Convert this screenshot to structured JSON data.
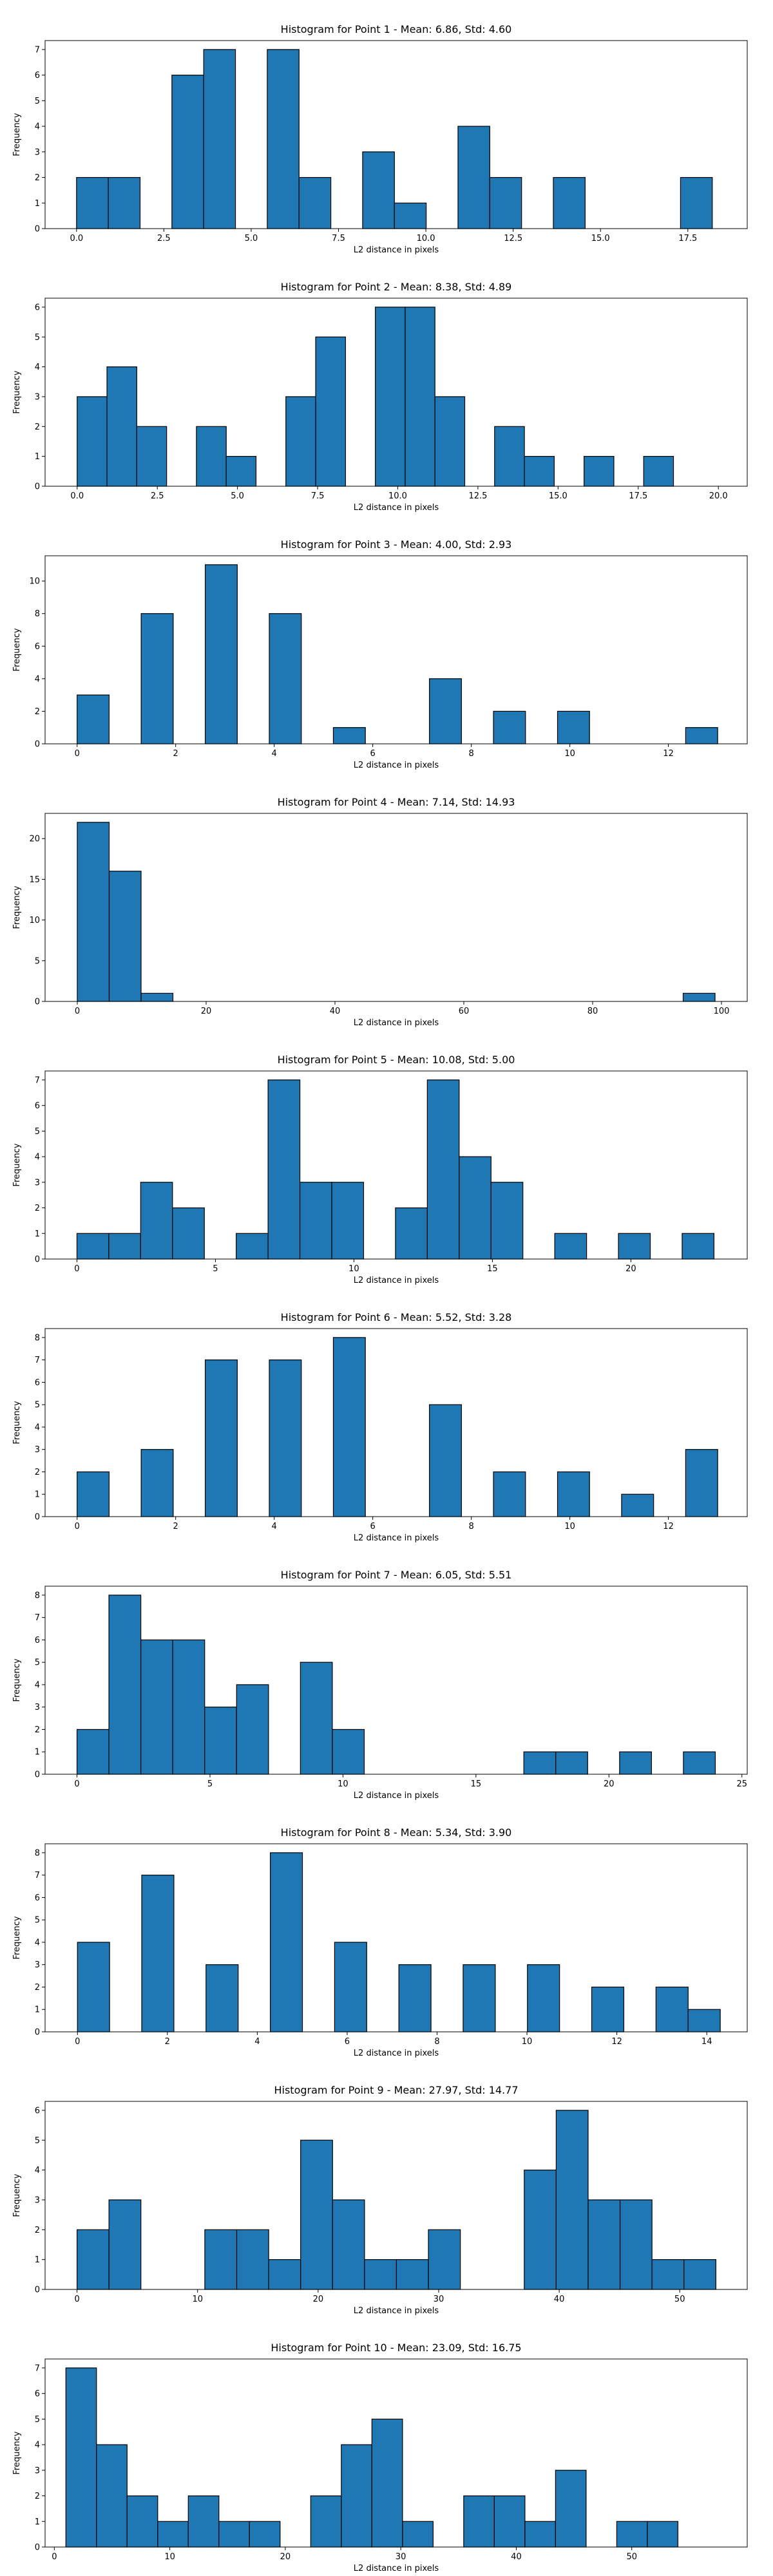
{
  "chart_data": [
    {
      "type": "bar",
      "title": "Histogram for Point 1 - Mean: 6.86, Std: 4.60",
      "xlabel": "L2 distance in pixels",
      "ylabel": "Frequency",
      "xlim": [
        -0.9,
        19.2
      ],
      "ylim": [
        0,
        7.35
      ],
      "xticks": [
        0.0,
        2.5,
        5.0,
        7.5,
        10.0,
        12.5,
        15.0,
        17.5
      ],
      "xtick_labels": [
        "0.0",
        "2.5",
        "5.0",
        "7.5",
        "10.0",
        "12.5",
        "15.0",
        "17.5"
      ],
      "yticks": [
        0,
        1,
        2,
        3,
        4,
        5,
        6,
        7
      ],
      "bins": [
        {
          "x0": 0.0,
          "x1": 0.91,
          "count": 2
        },
        {
          "x0": 0.91,
          "x1": 1.82,
          "count": 2
        },
        {
          "x0": 2.73,
          "x1": 3.64,
          "count": 6
        },
        {
          "x0": 3.64,
          "x1": 4.55,
          "count": 7
        },
        {
          "x0": 5.46,
          "x1": 6.37,
          "count": 7
        },
        {
          "x0": 6.37,
          "x1": 7.28,
          "count": 2
        },
        {
          "x0": 8.19,
          "x1": 9.1,
          "count": 3
        },
        {
          "x0": 9.1,
          "x1": 10.01,
          "count": 1
        },
        {
          "x0": 10.92,
          "x1": 11.83,
          "count": 4
        },
        {
          "x0": 11.83,
          "x1": 12.74,
          "count": 2
        },
        {
          "x0": 13.65,
          "x1": 14.56,
          "count": 2
        },
        {
          "x0": 17.29,
          "x1": 18.2,
          "count": 2
        }
      ]
    },
    {
      "type": "bar",
      "title": "Histogram for Point 2 - Mean: 8.38, Std: 4.89",
      "xlabel": "L2 distance in pixels",
      "ylabel": "Frequency",
      "xlim": [
        -1.0,
        20.9
      ],
      "ylim": [
        0,
        6.3
      ],
      "xticks": [
        0.0,
        2.5,
        5.0,
        7.5,
        10.0,
        12.5,
        15.0,
        17.5,
        20.0
      ],
      "xtick_labels": [
        "0.0",
        "2.5",
        "5.0",
        "7.5",
        "10.0",
        "12.5",
        "15.0",
        "17.5",
        "20.0"
      ],
      "yticks": [
        0,
        1,
        2,
        3,
        4,
        5,
        6
      ],
      "bins": [
        {
          "x0": 0.0,
          "x1": 0.93,
          "count": 3
        },
        {
          "x0": 0.93,
          "x1": 1.86,
          "count": 4
        },
        {
          "x0": 1.86,
          "x1": 2.79,
          "count": 2
        },
        {
          "x0": 3.72,
          "x1": 4.65,
          "count": 2
        },
        {
          "x0": 4.65,
          "x1": 5.58,
          "count": 1
        },
        {
          "x0": 6.51,
          "x1": 7.44,
          "count": 3
        },
        {
          "x0": 7.44,
          "x1": 8.37,
          "count": 5
        },
        {
          "x0": 9.3,
          "x1": 10.23,
          "count": 6
        },
        {
          "x0": 10.23,
          "x1": 11.16,
          "count": 6
        },
        {
          "x0": 11.16,
          "x1": 12.09,
          "count": 3
        },
        {
          "x0": 13.02,
          "x1": 13.95,
          "count": 2
        },
        {
          "x0": 13.95,
          "x1": 14.88,
          "count": 1
        },
        {
          "x0": 15.81,
          "x1": 16.74,
          "count": 1
        },
        {
          "x0": 17.67,
          "x1": 18.6,
          "count": 1
        }
      ]
    },
    {
      "type": "bar",
      "title": "Histogram for Point 3 - Mean: 4.00, Std: 2.93",
      "xlabel": "L2 distance in pixels",
      "ylabel": "Frequency",
      "xlim": [
        -0.65,
        13.6
      ],
      "ylim": [
        0,
        11.55
      ],
      "xticks": [
        0,
        2,
        4,
        6,
        8,
        10,
        12
      ],
      "xtick_labels": [
        "0",
        "2",
        "4",
        "6",
        "8",
        "10",
        "12"
      ],
      "yticks": [
        0,
        2,
        4,
        6,
        8,
        10
      ],
      "bins": [
        {
          "x0": 0.0,
          "x1": 0.65,
          "count": 3
        },
        {
          "x0": 1.3,
          "x1": 1.95,
          "count": 8
        },
        {
          "x0": 2.6,
          "x1": 3.25,
          "count": 11
        },
        {
          "x0": 3.9,
          "x1": 4.55,
          "count": 8
        },
        {
          "x0": 5.2,
          "x1": 5.85,
          "count": 1
        },
        {
          "x0": 7.15,
          "x1": 7.8,
          "count": 4
        },
        {
          "x0": 8.45,
          "x1": 9.1,
          "count": 2
        },
        {
          "x0": 9.75,
          "x1": 10.4,
          "count": 2
        },
        {
          "x0": 12.35,
          "x1": 13.0,
          "count": 1
        }
      ]
    },
    {
      "type": "bar",
      "title": "Histogram for Point 4 - Mean: 7.14, Std: 14.93",
      "xlabel": "L2 distance in pixels",
      "ylabel": "Frequency",
      "xlim": [
        -5.0,
        104.0
      ],
      "ylim": [
        0,
        23.1
      ],
      "xticks": [
        0,
        20,
        40,
        60,
        80,
        100
      ],
      "xtick_labels": [
        "0",
        "20",
        "40",
        "60",
        "80",
        "100"
      ],
      "yticks": [
        0,
        5,
        10,
        15,
        20
      ],
      "bins": [
        {
          "x0": 0.0,
          "x1": 4.95,
          "count": 22
        },
        {
          "x0": 4.95,
          "x1": 9.9,
          "count": 16
        },
        {
          "x0": 9.9,
          "x1": 14.85,
          "count": 1
        },
        {
          "x0": 94.05,
          "x1": 99.0,
          "count": 1
        }
      ]
    },
    {
      "type": "bar",
      "title": "Histogram for Point 5 - Mean: 10.08, Std: 5.00",
      "xlabel": "L2 distance in pixels",
      "ylabel": "Frequency",
      "xlim": [
        -1.15,
        24.2
      ],
      "ylim": [
        0,
        7.35
      ],
      "xticks": [
        0,
        5,
        10,
        15,
        20
      ],
      "xtick_labels": [
        "0",
        "5",
        "10",
        "15",
        "20"
      ],
      "yticks": [
        0,
        1,
        2,
        3,
        4,
        5,
        6,
        7
      ],
      "bins": [
        {
          "x0": 0.0,
          "x1": 1.15,
          "count": 1
        },
        {
          "x0": 1.15,
          "x1": 2.3,
          "count": 1
        },
        {
          "x0": 2.3,
          "x1": 3.45,
          "count": 3
        },
        {
          "x0": 3.45,
          "x1": 4.6,
          "count": 2
        },
        {
          "x0": 5.75,
          "x1": 6.9,
          "count": 1
        },
        {
          "x0": 6.9,
          "x1": 8.05,
          "count": 7
        },
        {
          "x0": 8.05,
          "x1": 9.2,
          "count": 3
        },
        {
          "x0": 9.2,
          "x1": 10.35,
          "count": 3
        },
        {
          "x0": 11.5,
          "x1": 12.65,
          "count": 2
        },
        {
          "x0": 12.65,
          "x1": 13.8,
          "count": 7
        },
        {
          "x0": 13.8,
          "x1": 14.95,
          "count": 4
        },
        {
          "x0": 14.95,
          "x1": 16.1,
          "count": 3
        },
        {
          "x0": 17.25,
          "x1": 18.4,
          "count": 1
        },
        {
          "x0": 19.55,
          "x1": 20.7,
          "count": 1
        },
        {
          "x0": 21.85,
          "x1": 23.0,
          "count": 1
        }
      ]
    },
    {
      "type": "bar",
      "title": "Histogram for Point 6 - Mean: 5.52, Std: 3.28",
      "xlabel": "L2 distance in pixels",
      "ylabel": "Frequency",
      "xlim": [
        -0.65,
        13.6
      ],
      "ylim": [
        0,
        8.4
      ],
      "xticks": [
        0,
        2,
        4,
        6,
        8,
        10,
        12
      ],
      "xtick_labels": [
        "0",
        "2",
        "4",
        "6",
        "8",
        "10",
        "12"
      ],
      "yticks": [
        0,
        1,
        2,
        3,
        4,
        5,
        6,
        7,
        8
      ],
      "bins": [
        {
          "x0": 0.0,
          "x1": 0.65,
          "count": 2
        },
        {
          "x0": 1.3,
          "x1": 1.95,
          "count": 3
        },
        {
          "x0": 2.6,
          "x1": 3.25,
          "count": 7
        },
        {
          "x0": 3.9,
          "x1": 4.55,
          "count": 7
        },
        {
          "x0": 5.2,
          "x1": 5.85,
          "count": 8
        },
        {
          "x0": 7.15,
          "x1": 7.8,
          "count": 5
        },
        {
          "x0": 8.45,
          "x1": 9.1,
          "count": 2
        },
        {
          "x0": 9.75,
          "x1": 10.4,
          "count": 2
        },
        {
          "x0": 11.05,
          "x1": 11.7,
          "count": 1
        },
        {
          "x0": 12.35,
          "x1": 13.0,
          "count": 3
        }
      ]
    },
    {
      "type": "bar",
      "title": "Histogram for Point 7 - Mean: 6.05, Std: 5.51",
      "xlabel": "L2 distance in pixels",
      "ylabel": "Frequency",
      "xlim": [
        -1.2,
        25.2
      ],
      "ylim": [
        0,
        8.4
      ],
      "xticks": [
        0,
        5,
        10,
        15,
        20,
        25
      ],
      "xtick_labels": [
        "0",
        "5",
        "10",
        "15",
        "20",
        "25"
      ],
      "yticks": [
        0,
        1,
        2,
        3,
        4,
        5,
        6,
        7,
        8
      ],
      "bins": [
        {
          "x0": 0.0,
          "x1": 1.2,
          "count": 2
        },
        {
          "x0": 1.2,
          "x1": 2.4,
          "count": 8
        },
        {
          "x0": 2.4,
          "x1": 3.6,
          "count": 6
        },
        {
          "x0": 3.6,
          "x1": 4.8,
          "count": 6
        },
        {
          "x0": 4.8,
          "x1": 6.0,
          "count": 3
        },
        {
          "x0": 6.0,
          "x1": 7.2,
          "count": 4
        },
        {
          "x0": 8.4,
          "x1": 9.6,
          "count": 5
        },
        {
          "x0": 9.6,
          "x1": 10.8,
          "count": 2
        },
        {
          "x0": 16.8,
          "x1": 18.0,
          "count": 1
        },
        {
          "x0": 18.0,
          "x1": 19.2,
          "count": 1
        },
        {
          "x0": 20.4,
          "x1": 21.6,
          "count": 1
        },
        {
          "x0": 22.8,
          "x1": 24.0,
          "count": 1
        }
      ]
    },
    {
      "type": "bar",
      "title": "Histogram for Point 8 - Mean: 5.34, Std: 3.90",
      "xlabel": "L2 distance in pixels",
      "ylabel": "Frequency",
      "xlim": [
        -0.72,
        14.9
      ],
      "ylim": [
        0,
        8.4
      ],
      "xticks": [
        0,
        2,
        4,
        6,
        8,
        10,
        12,
        14
      ],
      "xtick_labels": [
        "0",
        "2",
        "4",
        "6",
        "8",
        "10",
        "12",
        "14"
      ],
      "yticks": [
        0,
        1,
        2,
        3,
        4,
        5,
        6,
        7,
        8
      ],
      "bins": [
        {
          "x0": 0.0,
          "x1": 0.715,
          "count": 4
        },
        {
          "x0": 1.43,
          "x1": 2.145,
          "count": 7
        },
        {
          "x0": 2.86,
          "x1": 3.575,
          "count": 3
        },
        {
          "x0": 4.29,
          "x1": 5.005,
          "count": 8
        },
        {
          "x0": 5.72,
          "x1": 6.435,
          "count": 4
        },
        {
          "x0": 7.15,
          "x1": 7.865,
          "count": 3
        },
        {
          "x0": 8.58,
          "x1": 9.295,
          "count": 3
        },
        {
          "x0": 10.01,
          "x1": 10.725,
          "count": 3
        },
        {
          "x0": 11.44,
          "x1": 12.155,
          "count": 2
        },
        {
          "x0": 12.87,
          "x1": 13.585,
          "count": 2
        },
        {
          "x0": 13.585,
          "x1": 14.3,
          "count": 1
        }
      ]
    },
    {
      "type": "bar",
      "title": "Histogram for Point 9 - Mean: 27.97, Std: 14.77",
      "xlabel": "L2 distance in pixels",
      "ylabel": "Frequency",
      "xlim": [
        -2.65,
        55.6
      ],
      "ylim": [
        0,
        6.3
      ],
      "xticks": [
        0,
        10,
        20,
        30,
        40,
        50
      ],
      "xtick_labels": [
        "0",
        "10",
        "20",
        "30",
        "40",
        "50"
      ],
      "yticks": [
        0,
        1,
        2,
        3,
        4,
        5,
        6
      ],
      "bins": [
        {
          "x0": 0.0,
          "x1": 2.65,
          "count": 2
        },
        {
          "x0": 2.65,
          "x1": 5.3,
          "count": 3
        },
        {
          "x0": 10.6,
          "x1": 13.25,
          "count": 2
        },
        {
          "x0": 13.25,
          "x1": 15.9,
          "count": 2
        },
        {
          "x0": 15.9,
          "x1": 18.55,
          "count": 1
        },
        {
          "x0": 18.55,
          "x1": 21.2,
          "count": 5
        },
        {
          "x0": 21.2,
          "x1": 23.85,
          "count": 3
        },
        {
          "x0": 23.85,
          "x1": 26.5,
          "count": 1
        },
        {
          "x0": 26.5,
          "x1": 29.15,
          "count": 1
        },
        {
          "x0": 29.15,
          "x1": 31.8,
          "count": 2
        },
        {
          "x0": 37.1,
          "x1": 39.75,
          "count": 4
        },
        {
          "x0": 39.75,
          "x1": 42.4,
          "count": 6
        },
        {
          "x0": 42.4,
          "x1": 45.05,
          "count": 3
        },
        {
          "x0": 45.05,
          "x1": 47.7,
          "count": 3
        },
        {
          "x0": 47.7,
          "x1": 50.35,
          "count": 1
        },
        {
          "x0": 50.35,
          "x1": 53.0,
          "count": 1
        }
      ]
    },
    {
      "type": "bar",
      "title": "Histogram for Point 10 - Mean: 23.09, Std: 16.75",
      "xlabel": "L2 distance in pixels",
      "ylabel": "Frequency",
      "xlim": [
        -0.8,
        60.0
      ],
      "ylim": [
        0,
        7.35
      ],
      "xticks": [
        0,
        10,
        20,
        30,
        40,
        50
      ],
      "xtick_labels": [
        "0",
        "10",
        "20",
        "30",
        "40",
        "50"
      ],
      "yticks": [
        0,
        1,
        2,
        3,
        4,
        5,
        6,
        7
      ],
      "bins": [
        {
          "x0": 1.0,
          "x1": 3.65,
          "count": 7
        },
        {
          "x0": 3.65,
          "x1": 6.3,
          "count": 4
        },
        {
          "x0": 6.3,
          "x1": 8.95,
          "count": 2
        },
        {
          "x0": 8.95,
          "x1": 11.6,
          "count": 1
        },
        {
          "x0": 11.6,
          "x1": 14.25,
          "count": 2
        },
        {
          "x0": 14.25,
          "x1": 16.9,
          "count": 1
        },
        {
          "x0": 16.9,
          "x1": 19.55,
          "count": 1
        },
        {
          "x0": 22.2,
          "x1": 24.85,
          "count": 2
        },
        {
          "x0": 24.85,
          "x1": 27.5,
          "count": 4
        },
        {
          "x0": 27.5,
          "x1": 30.15,
          "count": 5
        },
        {
          "x0": 30.15,
          "x1": 32.8,
          "count": 1
        },
        {
          "x0": 35.45,
          "x1": 38.1,
          "count": 2
        },
        {
          "x0": 38.1,
          "x1": 40.75,
          "count": 2
        },
        {
          "x0": 40.75,
          "x1": 43.4,
          "count": 1
        },
        {
          "x0": 43.4,
          "x1": 46.05,
          "count": 3
        },
        {
          "x0": 48.7,
          "x1": 51.35,
          "count": 1
        },
        {
          "x0": 51.35,
          "x1": 54.0,
          "count": 1
        }
      ]
    }
  ],
  "colors": {
    "bar_fill": "#1f77b4",
    "bar_edge": "#000000",
    "axes": "#000000",
    "background": "#ffffff"
  }
}
